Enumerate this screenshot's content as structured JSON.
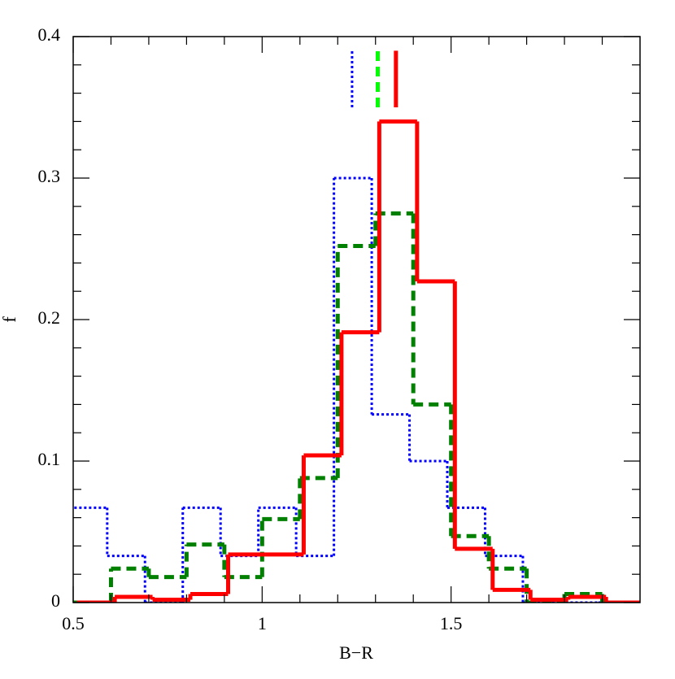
{
  "chart_data": {
    "type": "histogram",
    "xlabel": "B−R",
    "ylabel": "f",
    "xlim": [
      0.5,
      2.0
    ],
    "ylim": [
      0,
      0.4
    ],
    "xticks": [
      0.5,
      1,
      1.5
    ],
    "yticks": [
      0,
      0.1,
      0.2,
      0.3,
      0.4
    ],
    "xminorticks": [
      0.6,
      0.7,
      0.8,
      0.9,
      1.1,
      1.2,
      1.3,
      1.4,
      1.6,
      1.7,
      1.8,
      1.9
    ],
    "yminorticks": [
      0.02,
      0.04,
      0.06,
      0.08,
      0.12,
      0.14,
      0.16,
      0.18,
      0.22,
      0.24,
      0.26,
      0.28,
      0.32,
      0.34,
      0.36,
      0.38
    ],
    "series": [
      {
        "color": "#0000ff",
        "dash": "dotted",
        "bins": [
          0.49,
          0.59,
          0.69,
          0.79,
          0.89,
          0.99,
          1.09,
          1.19,
          1.29,
          1.39,
          1.49,
          1.59,
          1.69,
          1.79,
          1.89,
          1.99
        ],
        "values": [
          0.067,
          0.033,
          0,
          0.067,
          0.033,
          0.067,
          0.033,
          0.3,
          0.133,
          0.1,
          0.067,
          0.033,
          0,
          0,
          0
        ],
        "marker": {
          "x": 1.238,
          "y": [
            0.35,
            0.39
          ],
          "color": "#0000ff"
        }
      },
      {
        "color": "#008000",
        "dash": "dashed",
        "bins": [
          0.5,
          0.6,
          0.7,
          0.8,
          0.9,
          1.0,
          1.1,
          1.2,
          1.3,
          1.4,
          1.5,
          1.6,
          1.7,
          1.8,
          1.9,
          2.0
        ],
        "values": [
          0,
          0.024,
          0.018,
          0.041,
          0.018,
          0.059,
          0.088,
          0.252,
          0.275,
          0.14,
          0.047,
          0.024,
          0,
          0.006,
          0
        ],
        "marker": {
          "x": 1.306,
          "y": [
            0.35,
            0.39
          ],
          "color": "#00ff00"
        }
      },
      {
        "color": "#ff0000",
        "dash": "solid",
        "bins": [
          0.51,
          0.61,
          0.71,
          0.81,
          0.91,
          1.01,
          1.11,
          1.21,
          1.31,
          1.41,
          1.51,
          1.61,
          1.71,
          1.81,
          1.91,
          2.01
        ],
        "values": [
          0,
          0.004,
          0.002,
          0.006,
          0.034,
          0.034,
          0.104,
          0.191,
          0.34,
          0.227,
          0.038,
          0.009,
          0.002,
          0.004,
          0
        ],
        "marker": {
          "x": 1.354,
          "y": [
            0.35,
            0.39
          ],
          "color": "#ff0000"
        }
      }
    ]
  }
}
